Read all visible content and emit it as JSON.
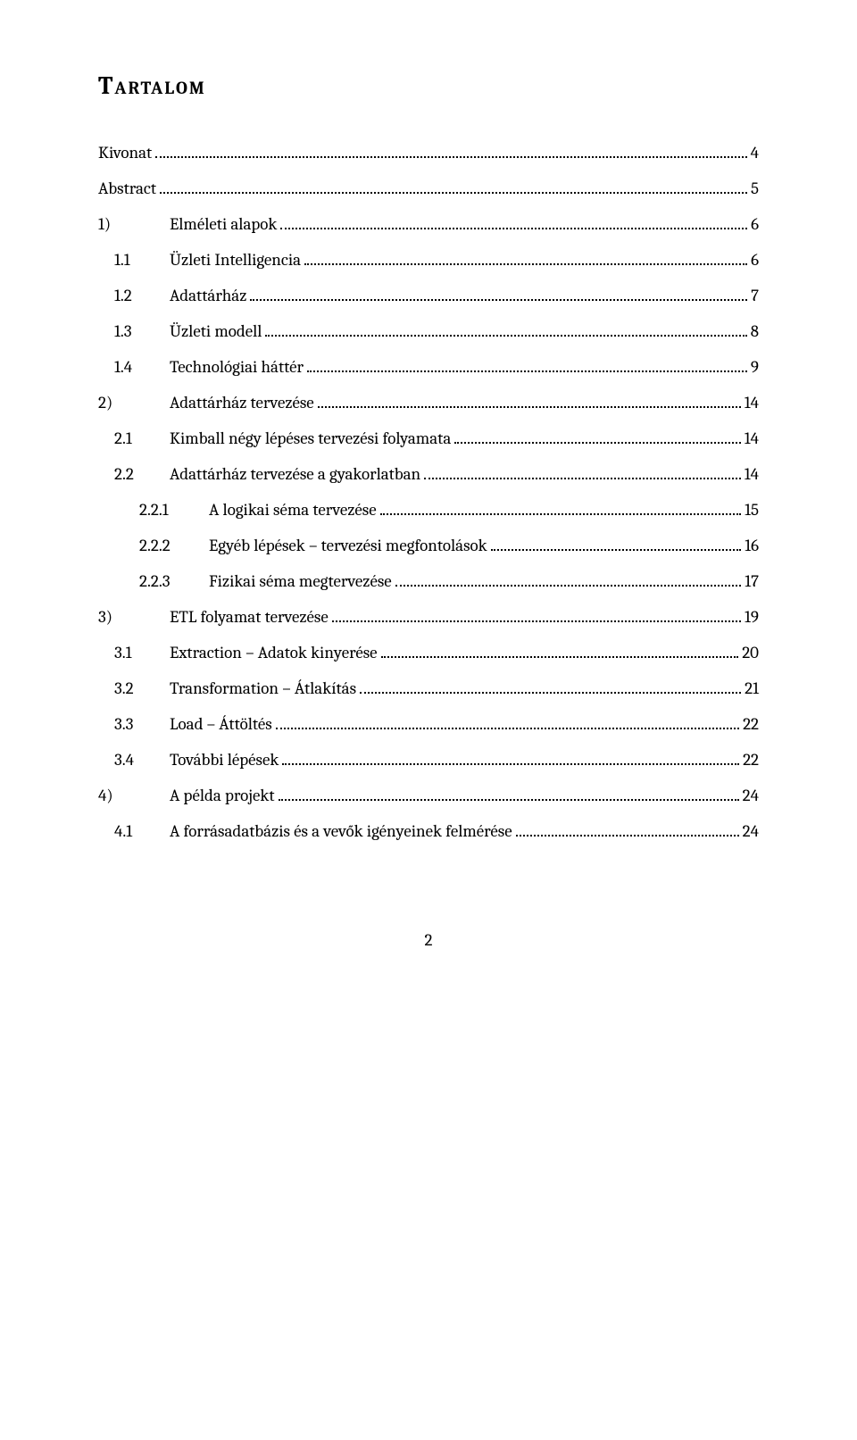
{
  "title": "Tartalom",
  "page_number": "2",
  "toc": [
    {
      "indent": 0,
      "num": "",
      "text": "Kivonat",
      "page": "4"
    },
    {
      "indent": 0,
      "num": "",
      "text": "Abstract",
      "page": "5"
    },
    {
      "indent": 1,
      "num": "1)",
      "text": "Elméleti alapok",
      "page": "6"
    },
    {
      "indent": 2,
      "num": "1.1",
      "text": "Üzleti Intelligencia",
      "page": "6"
    },
    {
      "indent": 2,
      "num": "1.2",
      "text": "Adattárház",
      "page": "7"
    },
    {
      "indent": 2,
      "num": "1.3",
      "text": "Üzleti modell",
      "page": "8"
    },
    {
      "indent": 2,
      "num": "1.4",
      "text": "Technológiai háttér",
      "page": "9"
    },
    {
      "indent": 1,
      "num": "2)",
      "text": "Adattárház tervezése",
      "page": "14"
    },
    {
      "indent": 2,
      "num": "2.1",
      "text": "Kimball négy lépéses tervezési folyamata",
      "page": "14"
    },
    {
      "indent": 2,
      "num": "2.2",
      "text": "Adattárház tervezése a gyakorlatban",
      "page": "14"
    },
    {
      "indent": 3,
      "num": "2.2.1",
      "text": "A logikai séma tervezése",
      "page": "15"
    },
    {
      "indent": 3,
      "num": "2.2.2",
      "text": "Egyéb lépések – tervezési megfontolások",
      "page": "16"
    },
    {
      "indent": 3,
      "num": "2.2.3",
      "text": "Fizikai séma megtervezése",
      "page": "17"
    },
    {
      "indent": 1,
      "num": "3)",
      "text": "ETL folyamat tervezése",
      "page": "19"
    },
    {
      "indent": 2,
      "num": "3.1",
      "text": "Extraction – Adatok kinyerése",
      "page": "20"
    },
    {
      "indent": 2,
      "num": "3.2",
      "text": "Transformation – Átlakítás",
      "page": "21"
    },
    {
      "indent": 2,
      "num": "3.3",
      "text": "Load – Áttöltés",
      "page": "22"
    },
    {
      "indent": 2,
      "num": "3.4",
      "text": "További lépések",
      "page": "22"
    },
    {
      "indent": 1,
      "num": "4)",
      "text": "A példa projekt",
      "page": "24"
    },
    {
      "indent": 2,
      "num": "4.1",
      "text": "A forrásadatbázis és a vevők igényeinek felmérése",
      "page": "24"
    }
  ]
}
